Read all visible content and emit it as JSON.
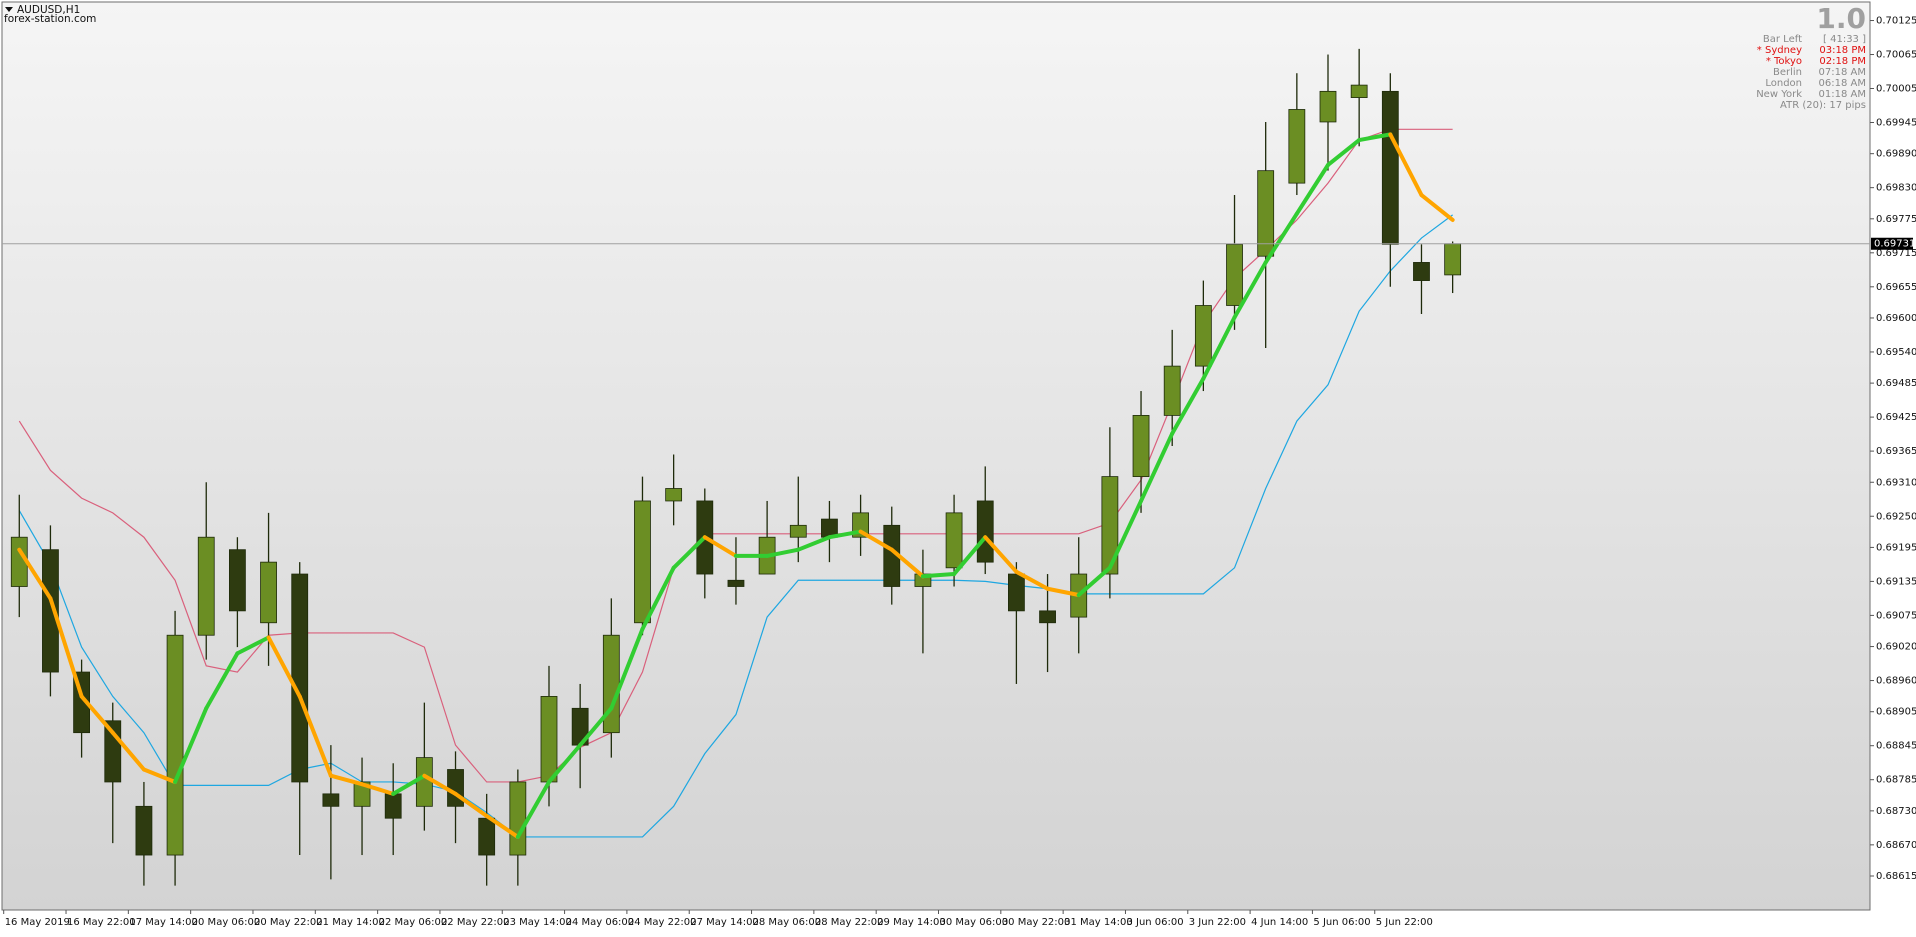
{
  "chart_data": {
    "type": "candlestick",
    "title": "AUDUSD,H1",
    "subtitle": "forex-station.com",
    "open": [
      0.69126,
      0.69191,
      0.68975,
      0.68889,
      0.68738,
      0.68652,
      0.6904,
      0.69191,
      0.69062,
      0.69148,
      0.6876,
      0.68738,
      0.6876,
      0.68738,
      0.68803,
      0.68717,
      0.68652,
      0.68781,
      0.68911,
      0.68868,
      0.69062,
      0.69277,
      0.69277,
      0.69137,
      0.69148,
      0.69213,
      0.69245,
      0.69213,
      0.69234,
      0.69126,
      0.69159,
      0.69277,
      0.69148,
      0.69083,
      0.69072,
      0.69148,
      0.6932,
      0.69428,
      0.69515,
      0.69622,
      0.69709,
      0.69838,
      0.69946,
      0.69989,
      0.7,
      0.69698,
      0.69676
    ],
    "high": [
      0.69288,
      0.69234,
      0.68997,
      0.68921,
      0.68781,
      0.69083,
      0.6931,
      0.69213,
      0.69256,
      0.69169,
      0.68846,
      0.68824,
      0.68814,
      0.68921,
      0.68835,
      0.6876,
      0.68803,
      0.68986,
      0.68954,
      0.69105,
      0.6932,
      0.69359,
      0.69299,
      0.69213,
      0.69277,
      0.6932,
      0.69277,
      0.69288,
      0.69267,
      0.69191,
      0.69288,
      0.69338,
      0.69169,
      0.69148,
      0.69213,
      0.69407,
      0.69471,
      0.69579,
      0.69666,
      0.69817,
      0.69946,
      0.70032,
      0.70065,
      0.70075,
      0.70032,
      0.6973,
      0.69735
    ],
    "low": [
      0.69072,
      0.68932,
      0.68824,
      0.68673,
      0.68598,
      0.68598,
      0.68997,
      0.69019,
      0.68986,
      0.68652,
      0.68609,
      0.68652,
      0.68652,
      0.68695,
      0.68673,
      0.68598,
      0.68598,
      0.68738,
      0.6877,
      0.68824,
      0.6904,
      0.69234,
      0.69105,
      0.69094,
      0.69148,
      0.69169,
      0.69169,
      0.6918,
      0.69094,
      0.69008,
      0.69126,
      0.69148,
      0.68954,
      0.68975,
      0.69008,
      0.69105,
      0.69256,
      0.69374,
      0.69471,
      0.69579,
      0.69547,
      0.69817,
      0.6986,
      0.69903,
      0.69655,
      0.69607,
      0.69644
    ],
    "close": [
      0.69213,
      0.68975,
      0.68868,
      0.68781,
      0.68652,
      0.6904,
      0.69213,
      0.69083,
      0.69169,
      0.68781,
      0.68738,
      0.68781,
      0.68717,
      0.68824,
      0.68738,
      0.68652,
      0.68781,
      0.68932,
      0.68846,
      0.6904,
      0.69277,
      0.69299,
      0.69148,
      0.69126,
      0.69213,
      0.69234,
      0.69213,
      0.69256,
      0.69126,
      0.69148,
      0.69256,
      0.69169,
      0.69083,
      0.69062,
      0.69148,
      0.6932,
      0.69428,
      0.69515,
      0.69622,
      0.6973,
      0.6986,
      0.69968,
      0.7,
      0.70011,
      0.6973,
      0.69666,
      0.69731
    ],
    "up_color": "#6b8e23",
    "down_color": "#2e3b10",
    "trend": {
      "up_color": "#32cd32",
      "down_color": "#ffa500",
      "values": [
        0.69191,
        0.69105,
        0.68932,
        0.68868,
        0.68803,
        0.68781,
        0.68911,
        0.69008,
        0.69036,
        0.68932,
        0.68792,
        0.68777,
        0.6876,
        0.68792,
        0.6876,
        0.68721,
        0.68684,
        0.68781,
        0.68846,
        0.68911,
        0.69051,
        0.69159,
        0.69213,
        0.6918,
        0.6918,
        0.69191,
        0.69213,
        0.69223,
        0.69191,
        0.69144,
        0.69148,
        0.69213,
        0.69152,
        0.69122,
        0.69111,
        0.69159,
        0.69277,
        0.69396,
        0.69493,
        0.69601,
        0.69698,
        0.69784,
        0.6987,
        0.69914,
        0.69924,
        0.69817,
        0.69773
      ]
    },
    "bands": [
      {
        "color": "#d9607c",
        "values": [
          0.69418,
          0.69331,
          0.69282,
          0.69256,
          0.69213,
          0.69137,
          0.68986,
          0.68975,
          0.6904,
          0.69044,
          0.69044,
          0.69044,
          0.69044,
          0.69019,
          0.68846,
          0.68781,
          0.68781,
          0.68792,
          0.68842,
          0.68868,
          0.68975,
          0.69159,
          0.69219,
          0.69219,
          0.69219,
          0.69219,
          0.69219,
          0.69219,
          0.69219,
          0.69219,
          0.69219,
          0.69219,
          0.69219,
          0.69219,
          0.69219,
          0.69238,
          0.69314,
          0.6945,
          0.6959,
          0.6967,
          0.6972,
          0.69773,
          0.69838,
          0.69914,
          0.69933,
          0.69933,
          0.69933
        ]
      },
      {
        "color": "#1ea7e1",
        "values": [
          0.6926,
          0.69165,
          0.69019,
          0.68932,
          0.68868,
          0.68775,
          0.68775,
          0.68775,
          0.68775,
          0.68803,
          0.68814,
          0.68781,
          0.68781,
          0.68777,
          0.68764,
          0.68727,
          0.68684,
          0.68684,
          0.68684,
          0.68684,
          0.68684,
          0.68738,
          0.68831,
          0.689,
          0.69072,
          0.69137,
          0.69137,
          0.69137,
          0.69137,
          0.69137,
          0.69137,
          0.69135,
          0.69128,
          0.69122,
          0.69113,
          0.69113,
          0.69113,
          0.69113,
          0.69113,
          0.69159,
          0.69299,
          0.69418,
          0.69482,
          0.69612,
          0.69683,
          0.69741,
          0.69782
        ]
      }
    ],
    "current_price": 0.69731,
    "ylim": [
      0.68555,
      0.70157
    ],
    "yticks": [
      0.70125,
      0.70065,
      0.70005,
      0.69945,
      {
        "value": 0.6989,
        "label": "0.69890"
      },
      {
        "value": 0.6983,
        "label": "0.69830"
      },
      0.69775,
      0.69715,
      0.69655,
      {
        "value": 0.696,
        "label": "0.69600"
      },
      {
        "value": 0.6954,
        "label": "0.69540"
      },
      0.69485,
      0.69425,
      0.69365,
      {
        "value": 0.6931,
        "label": "0.69310"
      },
      {
        "value": 0.6925,
        "label": "0.69250"
      },
      0.69195,
      0.69135,
      0.69075,
      {
        "value": 0.6902,
        "label": "0.69020"
      },
      {
        "value": 0.6896,
        "label": "0.68960"
      },
      0.68905,
      0.68845,
      0.68785,
      {
        "value": 0.6873,
        "label": "0.68730"
      },
      {
        "value": 0.6867,
        "label": "0.68670"
      },
      0.68615
    ],
    "xticks": [
      {
        "value": 0,
        "label": "16 May 2019"
      },
      {
        "value": 2,
        "label": "16 May 22:00"
      },
      {
        "value": 4,
        "label": "17 May 14:00"
      },
      {
        "value": 6,
        "label": "20 May 06:00"
      },
      {
        "value": 8,
        "label": "20 May 22:00"
      },
      {
        "value": 10,
        "label": "21 May 14:00"
      },
      {
        "value": 12,
        "label": "22 May 06:00"
      },
      {
        "value": 14,
        "label": "22 May 22:00"
      },
      {
        "value": 16,
        "label": "23 May 14:00"
      },
      {
        "value": 18,
        "label": "24 May 06:00"
      },
      {
        "value": 20,
        "label": "24 May 22:00"
      },
      {
        "value": 22,
        "label": "27 May 14:00"
      },
      {
        "value": 24,
        "label": "28 May 06:00"
      },
      {
        "value": 26,
        "label": "28 May 22:00"
      },
      {
        "value": 28,
        "label": "29 May 14:00"
      },
      {
        "value": 30,
        "label": "30 May 06:00"
      },
      {
        "value": 32,
        "label": "30 May 22:00"
      },
      {
        "value": 34,
        "label": "31 May 14:00"
      },
      {
        "value": 36,
        "label": "3 Jun 06:00"
      },
      {
        "value": 38,
        "label": "3 Jun 22:00"
      },
      {
        "value": 40,
        "label": "4 Jun 14:00"
      },
      {
        "value": 42,
        "label": "5 Jun 06:00"
      },
      {
        "value": 44,
        "label": "5 Jun 22:00"
      }
    ],
    "info": {
      "big": "1.0",
      "rows": [
        {
          "label": "Bar Left",
          "value": "[ 41:33 ]",
          "color": "#8a8a8a"
        },
        {
          "label": "* Sydney",
          "value": "03:18 PM",
          "color": "#e01010"
        },
        {
          "label": "* Tokyo",
          "value": "02:18 PM",
          "color": "#e01010"
        },
        {
          "label": "Berlin",
          "value": "07:18 AM",
          "color": "#8a8a8a"
        },
        {
          "label": "London",
          "value": "06:18 AM",
          "color": "#8a8a8a"
        },
        {
          "label": "New York",
          "value": "01:18 AM",
          "color": "#8a8a8a"
        },
        {
          "label": "ATR (20): 17 pips",
          "value": null,
          "color": "#8a8a8a"
        }
      ]
    }
  }
}
